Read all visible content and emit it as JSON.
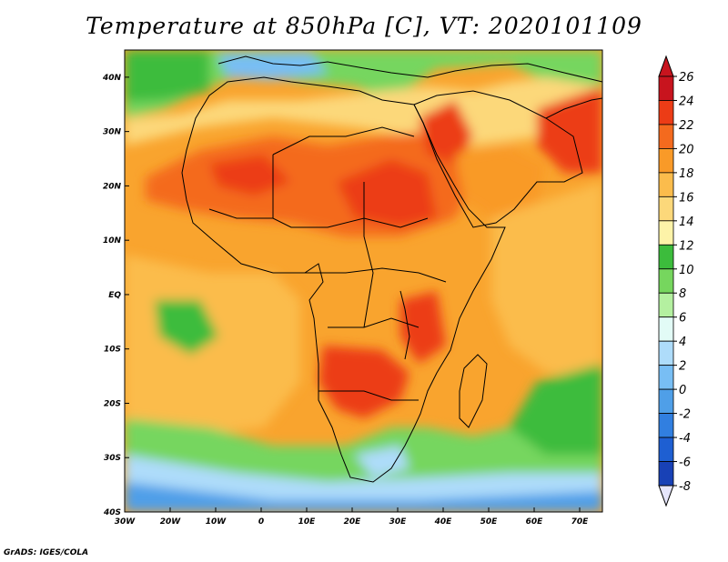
{
  "title": "Temperature at 850hPa [C], VT: 2020101109",
  "credit": "GrADS: IGES/COLA",
  "map": {
    "lon_range": [
      -30,
      75
    ],
    "lat_range": [
      -40,
      45
    ],
    "lat_ticks": [
      {
        "value": 40,
        "label": "40N"
      },
      {
        "value": 30,
        "label": "30N"
      },
      {
        "value": 20,
        "label": "20N"
      },
      {
        "value": 10,
        "label": "10N"
      },
      {
        "value": 0,
        "label": "EQ"
      },
      {
        "value": -10,
        "label": "10S"
      },
      {
        "value": -20,
        "label": "20S"
      },
      {
        "value": -30,
        "label": "30S"
      },
      {
        "value": -40,
        "label": "40S"
      }
    ],
    "lon_ticks": [
      {
        "value": -30,
        "label": "30W"
      },
      {
        "value": -20,
        "label": "20W"
      },
      {
        "value": -10,
        "label": "10W"
      },
      {
        "value": 0,
        "label": "0"
      },
      {
        "value": 10,
        "label": "10E"
      },
      {
        "value": 20,
        "label": "20E"
      },
      {
        "value": 30,
        "label": "30E"
      },
      {
        "value": 40,
        "label": "40E"
      },
      {
        "value": 50,
        "label": "50E"
      },
      {
        "value": 60,
        "label": "60E"
      },
      {
        "value": 70,
        "label": "70E"
      }
    ]
  },
  "colorbar": {
    "levels": [
      {
        "label": "26",
        "color": "#c8141e"
      },
      {
        "label": "24",
        "color": "#ec3c16"
      },
      {
        "label": "22",
        "color": "#f46a1e"
      },
      {
        "label": "20",
        "color": "#f99a28"
      },
      {
        "label": "18",
        "color": "#fbbc4c"
      },
      {
        "label": "16",
        "color": "#fcd87a"
      },
      {
        "label": "14",
        "color": "#fdf3a8"
      },
      {
        "label": "12",
        "color": "#3cbc3c"
      },
      {
        "label": "10",
        "color": "#76d65e"
      },
      {
        "label": "8",
        "color": "#b4f0a0"
      },
      {
        "label": "6",
        "color": "#e2fbf6"
      },
      {
        "label": "4",
        "color": "#aedcfa"
      },
      {
        "label": "2",
        "color": "#78bef4"
      },
      {
        "label": "0",
        "color": "#4f9fe8"
      },
      {
        "label": "-2",
        "color": "#317fe0"
      },
      {
        "label": "-4",
        "color": "#1e5fd2"
      },
      {
        "label": "-6",
        "color": "#1841b6"
      },
      {
        "label": "-8",
        "color": "#0c1f82"
      }
    ],
    "top_color": "#c8141e",
    "bottom_color": "#e6e6fc"
  }
}
